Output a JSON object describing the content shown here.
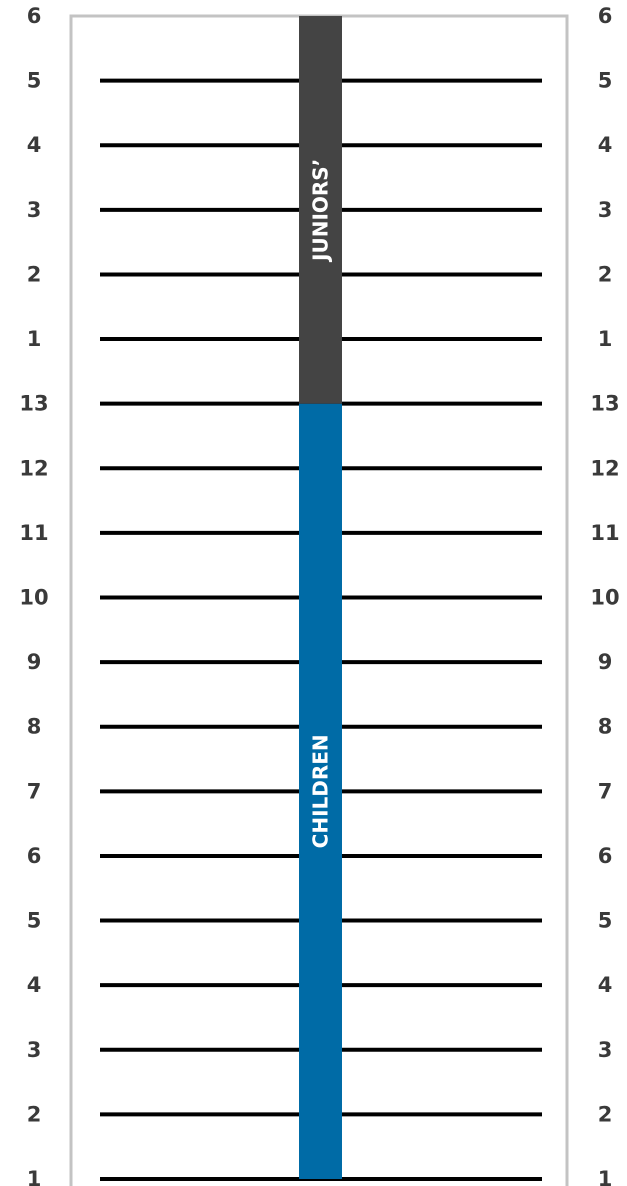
{
  "chart_data": {
    "type": "diagram",
    "size_labels": [
      "1",
      "2",
      "3",
      "4",
      "5",
      "6",
      "7",
      "8",
      "9",
      "10",
      "11",
      "12",
      "13",
      "1",
      "2",
      "3",
      "4",
      "5",
      "6"
    ],
    "bands": [
      {
        "label": "CHILDREN",
        "from_index": 0,
        "to_index": 12,
        "color": "#006ba6"
      },
      {
        "label": "JUNIORS’",
        "from_index": 12,
        "to_index": 18,
        "color": "#444444"
      }
    ],
    "colors": {
      "frame": "#c3c3c3",
      "rung": "#000000",
      "tick_text": "#3a3a3a"
    }
  }
}
